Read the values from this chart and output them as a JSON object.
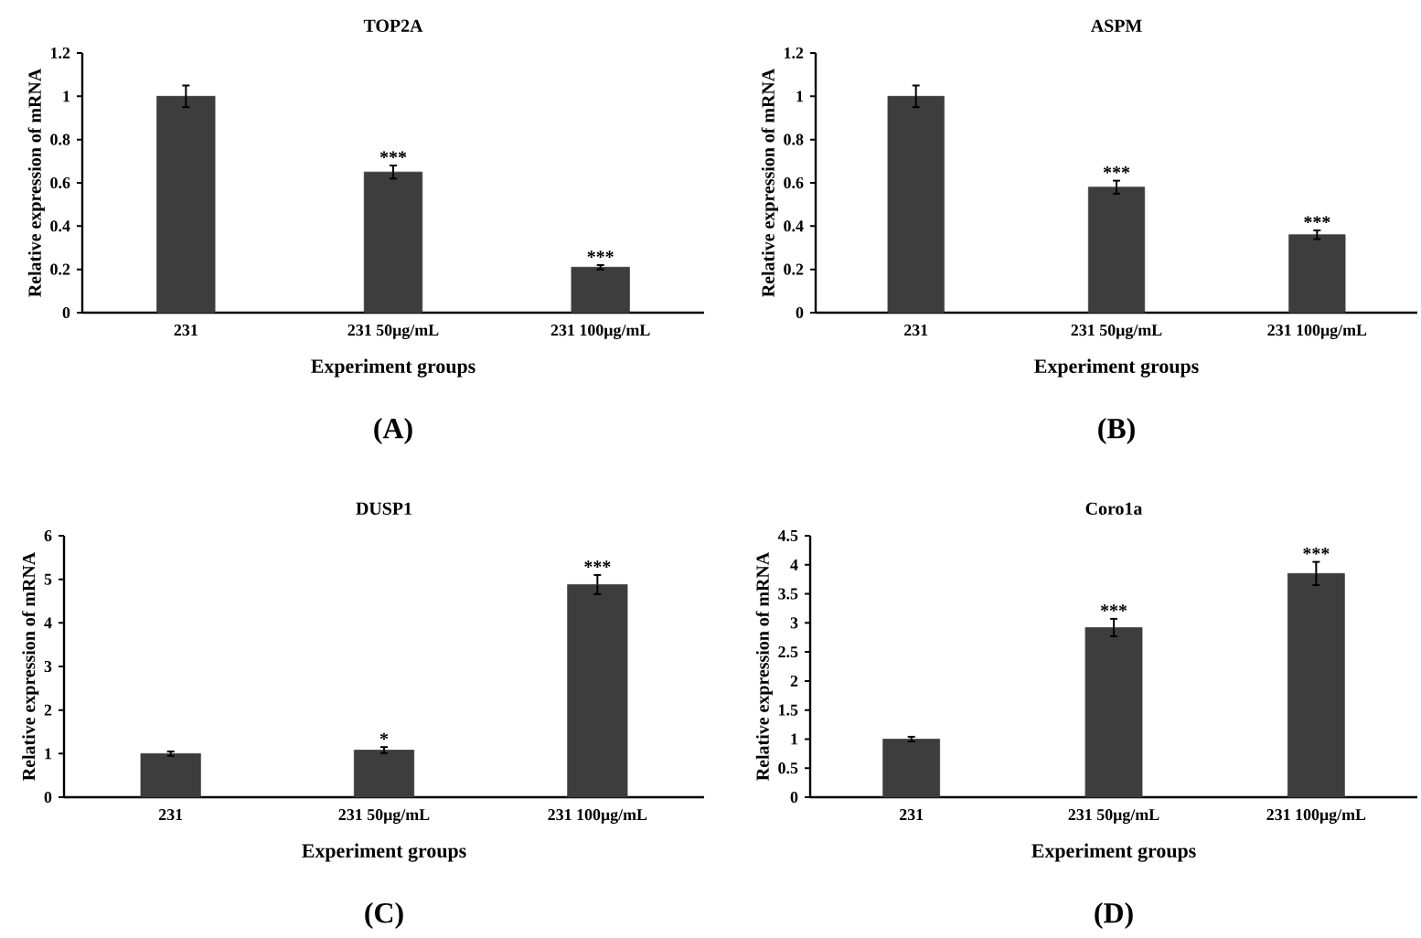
{
  "chart_data": [
    {
      "type": "bar",
      "title": "TOP2A",
      "xlabel": "Experiment groups",
      "ylabel": "Relative expression of mRNA",
      "categories": [
        "231",
        "231 50μg/mL",
        "231 100μg/mL"
      ],
      "values": [
        1.0,
        0.65,
        0.21
      ],
      "errors": [
        0.05,
        0.03,
        0.01
      ],
      "color": "#3d3d3d",
      "ylim": [
        0,
        1.2
      ],
      "yticks": [
        0,
        0.2,
        0.4,
        0.6,
        0.8,
        1,
        1.2
      ],
      "grid": false,
      "annotations": [
        {
          "text": "***",
          "x": "231 50μg/mL",
          "y": 0.68
        },
        {
          "text": "***",
          "x": "231 100μg/mL",
          "y": 0.22
        },
        "(A)"
      ]
    },
    {
      "type": "bar",
      "title": "ASPM",
      "xlabel": "Experiment groups",
      "ylabel": "Relative expression of mRNA",
      "categories": [
        "231",
        "231 50μg/mL",
        "231 100μg/mL"
      ],
      "values": [
        1.0,
        0.58,
        0.36
      ],
      "errors": [
        0.05,
        0.03,
        0.02
      ],
      "color": "#3d3d3d",
      "ylim": [
        0,
        1.2
      ],
      "yticks": [
        0,
        0.2,
        0.4,
        0.6,
        0.8,
        1,
        1.2
      ],
      "grid": false,
      "annotations": [
        {
          "text": "***",
          "x": "231 50μg/mL",
          "y": 0.61
        },
        {
          "text": "***",
          "x": "231 100μg/mL",
          "y": 0.38
        },
        "(B)"
      ]
    },
    {
      "type": "bar",
      "title": "DUSP1",
      "xlabel": "Experiment groups",
      "ylabel": "Relative expression of mRNA",
      "categories": [
        "231",
        "231 50μg/mL",
        "231 100μg/mL"
      ],
      "values": [
        1.0,
        1.08,
        4.88
      ],
      "errors": [
        0.05,
        0.07,
        0.22
      ],
      "color": "#3d3d3d",
      "ylim": [
        0,
        6
      ],
      "yticks": [
        0,
        1,
        2,
        3,
        4,
        5,
        6
      ],
      "grid": false,
      "annotations": [
        {
          "text": "*",
          "x": "231 50μg/mL",
          "y": 1.15
        },
        {
          "text": "***",
          "x": "231 100μg/mL",
          "y": 5.1
        },
        "(C)"
      ]
    },
    {
      "type": "bar",
      "title": "Coro1a",
      "xlabel": "Experiment groups",
      "ylabel": "Relative expression of mRNA",
      "categories": [
        "231",
        "231 50μg/mL",
        "231 100μg/mL"
      ],
      "values": [
        1.0,
        2.92,
        3.85
      ],
      "errors": [
        0.04,
        0.15,
        0.2
      ],
      "color": "#3d3d3d",
      "ylim": [
        0,
        4.5
      ],
      "yticks": [
        0,
        0.5,
        1,
        1.5,
        2,
        2.5,
        3,
        3.5,
        4,
        4.5
      ],
      "grid": false,
      "annotations": [
        {
          "text": "***",
          "x": "231 50μg/mL",
          "y": 3.07
        },
        {
          "text": "***",
          "x": "231 100μg/mL",
          "y": 4.05
        },
        "(D)"
      ]
    }
  ]
}
